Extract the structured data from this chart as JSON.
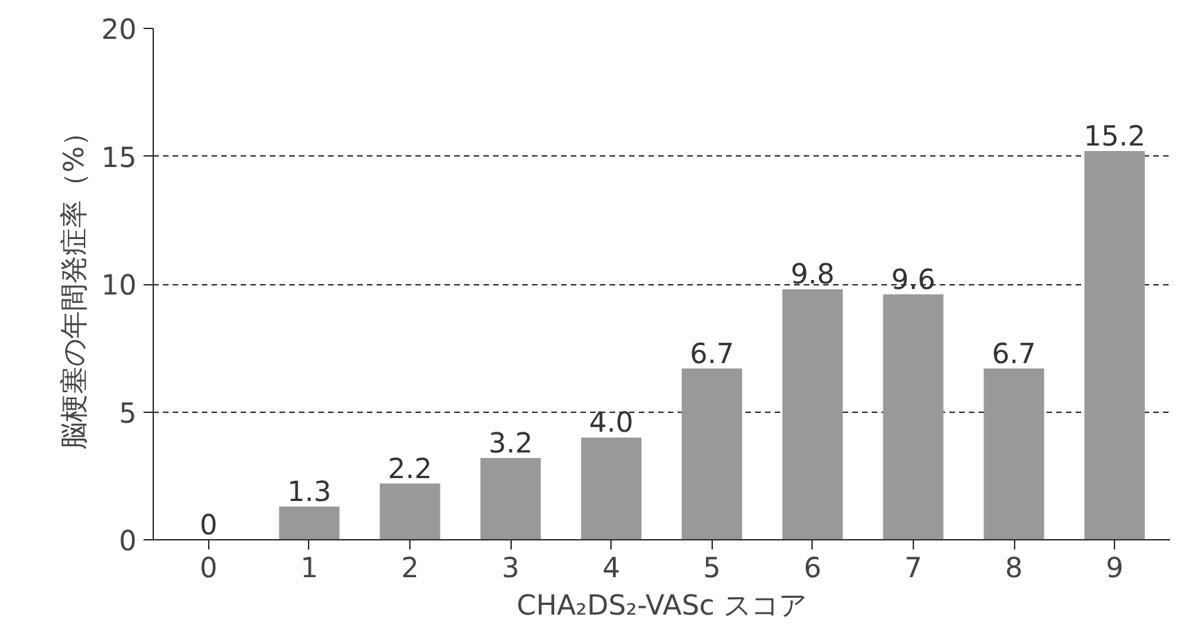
{
  "chart_data": {
    "type": "bar",
    "xlabel": "CHA₂DS₂-VASc スコア",
    "ylabel": "脳梗塞の年間発症率（%）",
    "categories": [
      "0",
      "1",
      "2",
      "3",
      "4",
      "5",
      "6",
      "7",
      "8",
      "9"
    ],
    "values": [
      0,
      1.3,
      2.2,
      3.2,
      4.0,
      6.7,
      9.8,
      9.6,
      6.7,
      15.2
    ],
    "color": "#999999",
    "ylim": [
      0,
      20
    ],
    "yticks": [
      0,
      5,
      10,
      15,
      20
    ],
    "value_labels": [
      "0",
      "1.3",
      "2.2",
      "3.2",
      "4.0",
      "6.7",
      "9.8",
      "9.6",
      "6.7",
      "15.2"
    ],
    "grid": "y"
  }
}
